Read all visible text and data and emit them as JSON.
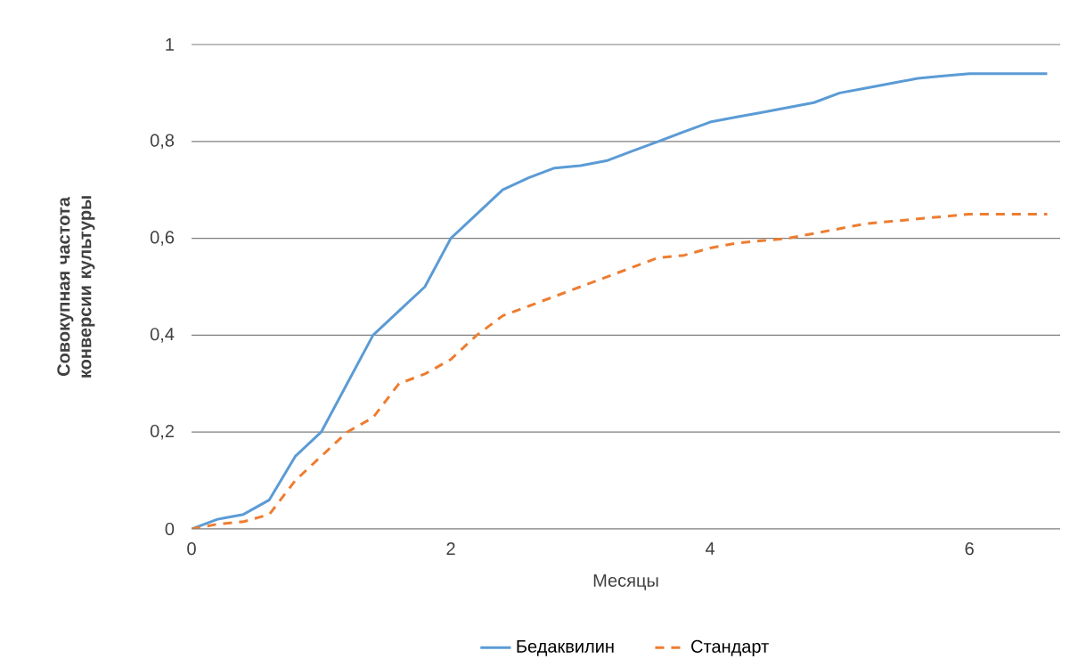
{
  "chart_data": {
    "type": "line",
    "xlabel": "Месяцы",
    "ylabel": "Совокупная частота конверсии культуры",
    "x": [
      0,
      0.2,
      0.4,
      0.6,
      0.8,
      1.0,
      1.2,
      1.4,
      1.6,
      1.8,
      2.0,
      2.2,
      2.4,
      2.6,
      2.8,
      3.0,
      3.2,
      3.4,
      3.6,
      3.8,
      4.0,
      4.2,
      4.4,
      4.6,
      4.8,
      5.0,
      5.2,
      5.4,
      5.6,
      5.8,
      6.0,
      6.2,
      6.4,
      6.6
    ],
    "series": [
      {
        "name": "Бедаквилин",
        "color": "#5b9bd5",
        "line_style": "solid",
        "values": [
          0,
          0.02,
          0.03,
          0.06,
          0.15,
          0.2,
          0.3,
          0.4,
          0.45,
          0.5,
          0.6,
          0.65,
          0.7,
          0.725,
          0.745,
          0.75,
          0.76,
          0.78,
          0.8,
          0.82,
          0.84,
          0.85,
          0.86,
          0.87,
          0.88,
          0.9,
          0.91,
          0.92,
          0.93,
          0.935,
          0.94,
          0.94,
          0.94,
          0.94
        ]
      },
      {
        "name": "Стандарт",
        "color": "#ed7d31",
        "line_style": "dashed",
        "values": [
          0,
          0.01,
          0.015,
          0.03,
          0.1,
          0.15,
          0.2,
          0.23,
          0.3,
          0.32,
          0.35,
          0.4,
          0.44,
          0.46,
          0.48,
          0.5,
          0.52,
          0.54,
          0.56,
          0.565,
          0.58,
          0.59,
          0.595,
          0.6,
          0.61,
          0.62,
          0.63,
          0.635,
          0.64,
          0.645,
          0.65,
          0.65,
          0.65,
          0.65
        ]
      }
    ],
    "xlim": [
      0,
      6.7
    ],
    "xticks": [
      0,
      2,
      4,
      6
    ],
    "ylim": [
      0,
      1
    ],
    "yticks": [
      0,
      {
        "value": 0.2,
        "label": "0,2"
      },
      {
        "value": 0.4,
        "label": "0,4"
      },
      {
        "value": 0.6,
        "label": "0,6"
      },
      {
        "value": 0.8,
        "label": "0,8"
      },
      1
    ],
    "grid": "y",
    "legend": "bottom",
    "marker": "none"
  }
}
